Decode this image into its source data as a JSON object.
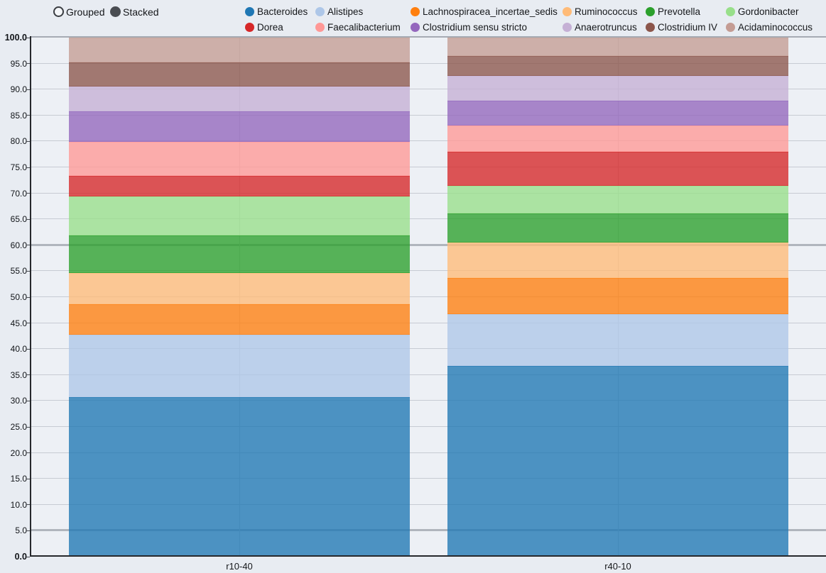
{
  "controls": {
    "grouped_label": "Grouped",
    "stacked_label": "Stacked",
    "selected": "Stacked"
  },
  "chart_data": {
    "type": "bar",
    "stacked": true,
    "title": "",
    "xlabel": "",
    "ylabel": "",
    "categories": [
      "r10-40",
      "r40-10"
    ],
    "series": [
      {
        "name": "Bacteroides",
        "color": "#1f77b4",
        "values": [
          30.7,
          36.7
        ]
      },
      {
        "name": "Alistipes",
        "color": "#aec7e8",
        "values": [
          12.0,
          10.0
        ]
      },
      {
        "name": "Lachnospiracea_incertae_sedis",
        "color": "#ff7f0e",
        "values": [
          6.0,
          7.0
        ]
      },
      {
        "name": "Ruminococcus",
        "color": "#ffbb78",
        "values": [
          5.9,
          6.8
        ]
      },
      {
        "name": "Prevotella",
        "color": "#2ca02c",
        "values": [
          7.3,
          5.6
        ]
      },
      {
        "name": "Gordonibacter",
        "color": "#98df8a",
        "values": [
          7.5,
          5.4
        ]
      },
      {
        "name": "Dorea",
        "color": "#d62728",
        "values": [
          4.0,
          6.5
        ]
      },
      {
        "name": "Faecalibacterium",
        "color": "#ff9896",
        "values": [
          6.5,
          5.1
        ]
      },
      {
        "name": "Clostridium sensu stricto",
        "color": "#9467bd",
        "values": [
          5.9,
          4.8
        ]
      },
      {
        "name": "Anaerotruncus",
        "color": "#c5b0d5",
        "values": [
          4.8,
          4.7
        ]
      },
      {
        "name": "Clostridium IV",
        "color": "#8c564b",
        "values": [
          4.6,
          3.9
        ]
      },
      {
        "name": "Acidaminococcus",
        "color": "#c49c94",
        "values": [
          4.8,
          3.5
        ]
      }
    ],
    "ylim": [
      0,
      100
    ],
    "ytick_step": 5,
    "ytick_labels": [
      "0.0",
      "5.0",
      "10.0",
      "15.0",
      "20.0",
      "25.0",
      "30.0",
      "35.0",
      "40.0",
      "45.0",
      "50.0",
      "55.0",
      "60.0",
      "65.0",
      "70.0",
      "75.0",
      "80.0",
      "85.0",
      "90.0",
      "95.0",
      "100.0"
    ],
    "reference_lines": [
      5,
      60
    ],
    "grid": true,
    "legend_position": "top",
    "bar_fill_opacity": 0.78
  }
}
